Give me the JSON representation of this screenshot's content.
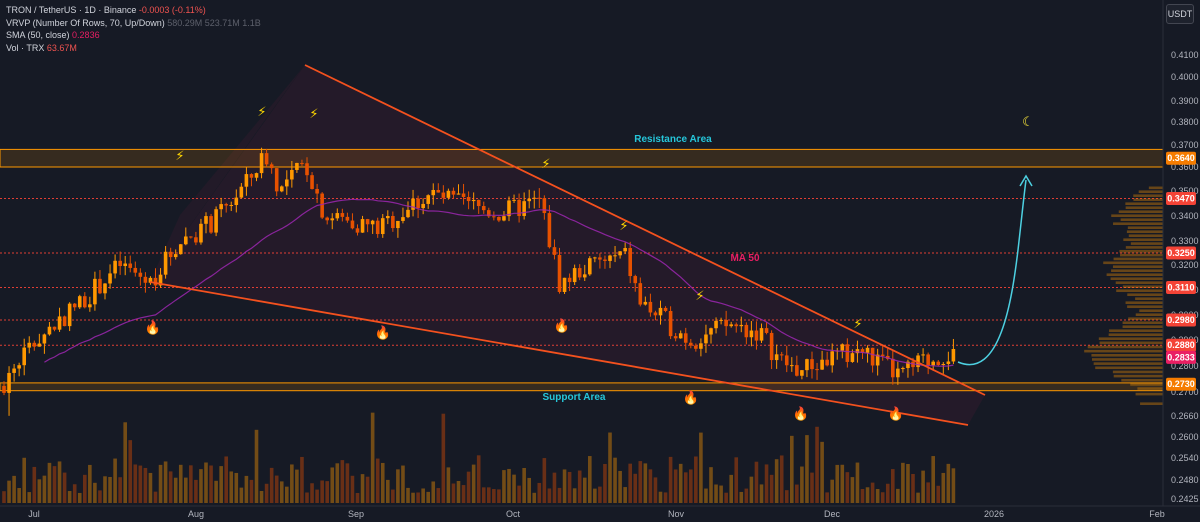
{
  "legend": {
    "title": "TRON / TetherUS · 1D · Binance",
    "change": "-0.0003 (-0.11%)",
    "vrvp_name": "VRVP (Number Of Rows, 70, Up/Down)",
    "vrvp_values": "580.29M  523.71M  1.1B",
    "sma_name": "SMA (50, close)",
    "sma_value": "0.2836",
    "vol_name": "Vol · TRX",
    "vol_value": "63.67M"
  },
  "currency": "USDT",
  "annotations": {
    "resistance": "Resistance Area",
    "support": "Support Area",
    "ma": "MA 50"
  },
  "chart_data": {
    "type": "candlestick",
    "symbol": "TRXUSDT",
    "interval": "1D",
    "y_ticks": [
      0.41,
      0.4,
      0.39,
      0.38,
      0.37,
      0.36,
      0.35,
      0.34,
      0.33,
      0.32,
      0.31,
      0.3,
      0.29,
      0.28,
      0.27,
      0.266,
      0.26,
      0.254,
      0.248,
      0.2425
    ],
    "y_tick_labels": [
      "0.4100",
      "0.4000",
      "0.3900",
      "0.3800",
      "0.3700",
      "0.3600",
      "0.3500",
      "0.3400",
      "0.3300",
      "0.3200",
      "0.3100",
      "0.3000",
      "0.2900",
      "0.2800",
      "0.2700",
      "0.2660",
      "0.2600",
      "0.2540",
      "0.2480",
      "0.2425"
    ],
    "x_labels": [
      "Jul",
      "Aug",
      "Sep",
      "Oct",
      "Nov",
      "Dec",
      "2026",
      "Feb"
    ],
    "price_tags": [
      {
        "label": "0.3640",
        "color": "#f57c00"
      },
      {
        "label": "0.3470",
        "color": "#f44336"
      },
      {
        "label": "0.3250",
        "color": "#f44336"
      },
      {
        "label": "0.3110",
        "color": "#f44336"
      },
      {
        "label": "0.2980",
        "color": "#f44336"
      },
      {
        "label": "0.2880",
        "color": "#f44336"
      },
      {
        "label": "0.2833",
        "color": "#e91e63"
      },
      {
        "label": "0.2730",
        "color": "#f57c00"
      }
    ],
    "horizontal_levels": [
      0.347,
      0.325,
      0.311,
      0.298,
      0.288
    ],
    "resistance_zone": [
      0.36,
      0.368
    ],
    "support_zone": [
      0.2705,
      0.2735
    ],
    "last_price": 0.2833,
    "sma50_last": 0.2836,
    "volume_last": "63.67M"
  },
  "colors": {
    "bg": "#161a25",
    "bull": "#ff9800",
    "bear": "#e65100",
    "line": "#f4511e",
    "zone": "#ff9800",
    "ma": "#9c27b0",
    "arrow": "#4dd0e1"
  }
}
